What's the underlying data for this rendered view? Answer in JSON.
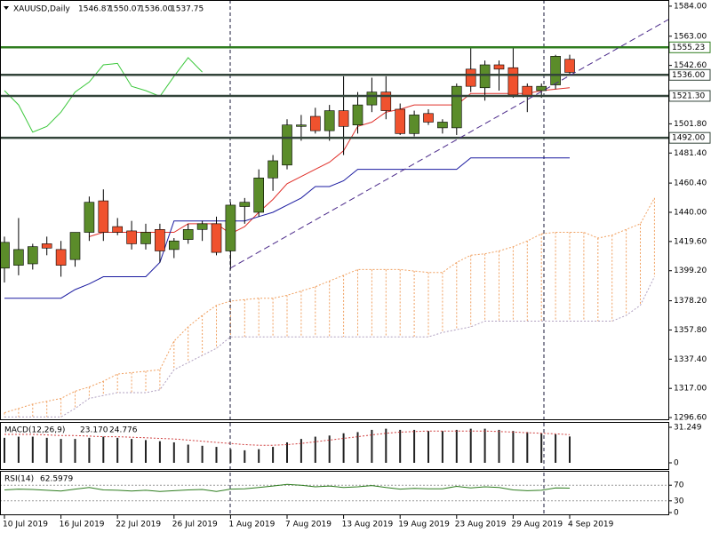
{
  "header": {
    "symbol": "XAUUSD,Daily",
    "ohlc": [
      "1546.87",
      "1550.07",
      "1536.00",
      "1537.75"
    ]
  },
  "chart_data": [
    {
      "type": "candlestick",
      "categories": [
        "10 Jul 2019",
        null,
        null,
        null,
        "16 Jul 2019",
        null,
        null,
        null,
        "22 Jul 2019",
        null,
        null,
        null,
        "26 Jul 2019",
        null,
        null,
        null,
        "1 Aug 2019",
        null,
        null,
        null,
        "7 Aug 2019",
        null,
        null,
        null,
        "13 Aug 2019",
        null,
        null,
        null,
        "19 Aug 2019",
        null,
        null,
        null,
        "23 Aug 2019",
        null,
        null,
        null,
        "29 Aug 2019",
        null,
        null,
        null,
        "4 Sep 2019",
        null,
        null,
        null,
        null,
        null,
        null
      ],
      "open": [
        1401,
        1403,
        1404,
        1418,
        1414,
        1407,
        1426,
        1448,
        1430,
        1427,
        1418,
        1428,
        1414,
        1421,
        1428,
        1432,
        1413,
        1444,
        1440,
        1464,
        1473,
        1500,
        1507,
        1497,
        1511,
        1501,
        1515,
        1524,
        1512,
        1495,
        1509,
        1499,
        1499,
        1540,
        1527,
        1543,
        1541,
        1528,
        1525,
        1529,
        1546.87,
        null,
        null,
        null,
        null,
        null,
        null
      ],
      "high": [
        1423,
        1436,
        1418,
        1423,
        1420,
        1426,
        1451,
        1456,
        1436,
        1434,
        1432,
        1432,
        1422,
        1432,
        1434,
        1437,
        1447,
        1450,
        1470,
        1480,
        1505,
        1508,
        1513,
        1515,
        1535,
        1524,
        1534,
        1535,
        1516,
        1511,
        1512,
        1505,
        1530,
        1555,
        1546,
        1546,
        1555,
        1530,
        1530,
        1550,
        1550.07,
        null,
        null,
        null,
        null,
        null,
        null
      ],
      "low": [
        1391,
        1396,
        1400,
        1410,
        1395,
        1402,
        1420,
        1420,
        1424,
        1414,
        1414,
        1405,
        1408,
        1418,
        1420,
        1410,
        1400,
        1432,
        1437,
        1455,
        1470,
        1490,
        1495,
        1490,
        1480,
        1495,
        1510,
        1505,
        1494,
        1493,
        1501,
        1495,
        1494,
        1524,
        1518,
        1525,
        1520,
        1510,
        1520,
        1526,
        1536,
        null,
        null,
        null,
        null,
        null,
        null
      ],
      "close": [
        1419,
        1414,
        1416,
        1415,
        1403,
        1426,
        1447,
        1426,
        1426,
        1418,
        1426,
        1413,
        1420,
        1428,
        1432,
        1412,
        1445,
        1447,
        1464,
        1476,
        1501,
        1501,
        1497,
        1511,
        1500,
        1515,
        1524,
        1511,
        1495,
        1508,
        1503,
        1503,
        1528,
        1528,
        1543,
        1540,
        1522,
        1521,
        1528,
        1549,
        1537.75,
        null,
        null,
        null,
        null,
        null,
        null
      ],
      "up_color": "#5b8c2a",
      "down_color": "#f0522e",
      "ylim": [
        1295.4,
        1588.3
      ],
      "yticks": [
        {
          "value": 1584,
          "label": "1584.00"
        },
        {
          "value": 1563,
          "label": "1563.00"
        },
        {
          "value": 1542.6,
          "label": "1542.60"
        },
        {
          "value": 1501.8,
          "label": "1501.80"
        },
        {
          "value": 1481.4,
          "label": "1481.40"
        },
        {
          "value": 1460.4,
          "label": "1460.40"
        },
        {
          "value": 1440,
          "label": "1440.00"
        },
        {
          "value": 1419.6,
          "label": "1419.60"
        },
        {
          "value": 1399.2,
          "label": "1399.20"
        },
        {
          "value": 1378.2,
          "label": "1378.20"
        },
        {
          "value": 1357.8,
          "label": "1357.80"
        },
        {
          "value": 1337.4,
          "label": "1337.40"
        },
        {
          "value": 1317,
          "label": "1317.00"
        },
        {
          "value": 1296.6,
          "label": "1296.60"
        }
      ],
      "levels": [
        {
          "value": 1555.23,
          "color": "#2f7d1f"
        },
        {
          "value": {
            "value": 1536,
            "label": "1536.00"
          },
          "color": "#33443a"
        },
        {
          "value": {
            "value": 1521.3,
            "label": "1521.30"
          },
          "color": "#33443a"
        },
        {
          "value": {
            "value": 1492,
            "label": "1492.00"
          },
          "color": "#33443a"
        }
      ],
      "series": [
        {
          "color": "#e0302a",
          "values": [
            null,
            null,
            null,
            null,
            null,
            null,
            1423,
            1426,
            1426,
            1426,
            1426,
            1426,
            1426,
            1432,
            1432,
            1432,
            1425,
            1430,
            1440,
            1449,
            1460,
            1465,
            1470,
            1475,
            1483,
            1500,
            1503,
            1510,
            1512,
            1515,
            1515,
            1515,
            1515,
            1523,
            1523,
            1523,
            1523,
            1523,
            1525,
            1526,
            1527,
            null,
            null,
            null,
            null,
            null,
            null
          ]
        },
        {
          "color": "#1a1aa0",
          "values": [
            1380,
            1380,
            1380,
            1380,
            1380,
            1386,
            1390,
            1395,
            1395,
            1395,
            1395,
            1405,
            1434,
            1434,
            1434,
            1434,
            1434,
            1434,
            1437,
            1440,
            1445,
            1450,
            1458,
            1458,
            1462,
            1470,
            1470,
            1470,
            1470,
            1470,
            1470,
            1470,
            1470,
            1478,
            1478,
            1478,
            1478,
            1478,
            1478,
            1478,
            1478,
            null,
            null,
            null,
            null,
            null,
            null
          ]
        },
        {
          "color": "#3cc83c",
          "values": [
            1525,
            1515,
            1496,
            1500,
            1510,
            1524,
            1531,
            1543,
            1544,
            1528,
            1525,
            1521,
            1535,
            1548,
            1538,
            null,
            null,
            null,
            null,
            null,
            null,
            null,
            null,
            null,
            null,
            null,
            null,
            null,
            null,
            null,
            null,
            null,
            null,
            null,
            null,
            null,
            null,
            null,
            null,
            null,
            null,
            null,
            null,
            null,
            null,
            null,
            null
          ]
        }
      ],
      "cloud": {
        "color": "#f0a060",
        "upper": [
          1300,
          1303,
          1306,
          1308,
          1310,
          1315,
          1318,
          1322,
          1327,
          1328,
          1329,
          1330,
          1350,
          1360,
          1368,
          1375,
          1378,
          1379,
          1380,
          1380,
          1382,
          1385,
          1388,
          1392,
          1396,
          1400,
          1400,
          1400,
          1400,
          1399,
          1398,
          1398,
          1405,
          1410,
          1411,
          1413,
          1416,
          1420,
          1425,
          1426,
          1426,
          1426,
          1422,
          1424,
          1428,
          1432,
          1450
        ],
        "lower": [
          1297,
          1297,
          1297,
          1297,
          1297,
          1303,
          1310,
          1312,
          1314,
          1314,
          1314,
          1316,
          1330,
          1335,
          1340,
          1345,
          1353,
          1353,
          1353,
          1353,
          1353,
          1353,
          1353,
          1353,
          1353,
          1353,
          1353,
          1353,
          1353,
          1353,
          1353,
          1356,
          1358,
          1360,
          1364,
          1364,
          1364,
          1364,
          1364,
          1364,
          1364,
          1364,
          1364,
          1364,
          1368,
          1375,
          1395
        ]
      }
    },
    {
      "type": "macd",
      "title": "MACD(12,26,9)",
      "readout": [
        "23.170",
        "24.776"
      ],
      "values": [
        22,
        23,
        23,
        22,
        21,
        21,
        22,
        23,
        22,
        21,
        20,
        19,
        18,
        16,
        15,
        14,
        12,
        11,
        12,
        14,
        18,
        21,
        23,
        24,
        26,
        27,
        29,
        30,
        29,
        29,
        28,
        28,
        29,
        30,
        30,
        29,
        28,
        27,
        26,
        25,
        23.17,
        null,
        null,
        null,
        null,
        null,
        null
      ],
      "signal": [
        25,
        25,
        25,
        24.5,
        24,
        24,
        23.5,
        23,
        23,
        22.5,
        22,
        21.5,
        21,
        20,
        19,
        18,
        17,
        16,
        15.5,
        15.5,
        16,
        17,
        18.5,
        20,
        21.5,
        23,
        24.5,
        26,
        27,
        27.5,
        28,
        28,
        28,
        28,
        28,
        27.5,
        27,
        26.5,
        26,
        25.5,
        24.776,
        null,
        null,
        null,
        null,
        null,
        null
      ],
      "color": "#222222",
      "signal_color": "#d04040",
      "ylim": [
        -5.47,
        35.94
      ],
      "yticks": [
        31.249,
        0
      ]
    },
    {
      "type": "rsi",
      "title": "RSI(14)",
      "readout": "62.5979",
      "values": [
        58,
        60,
        59,
        57,
        55,
        60,
        64,
        58,
        57,
        55,
        57,
        54,
        56,
        58,
        59,
        54,
        60,
        61,
        64,
        68,
        72,
        70,
        66,
        68,
        64,
        66,
        69,
        64,
        60,
        62,
        61,
        61,
        67,
        63,
        66,
        64,
        58,
        56,
        57,
        63,
        62.5979,
        null,
        null,
        null,
        null,
        null,
        null
      ],
      "color": "#2e7d1f",
      "ylim": [
        0,
        100
      ],
      "yticks": [
        70,
        30,
        0
      ]
    }
  ]
}
